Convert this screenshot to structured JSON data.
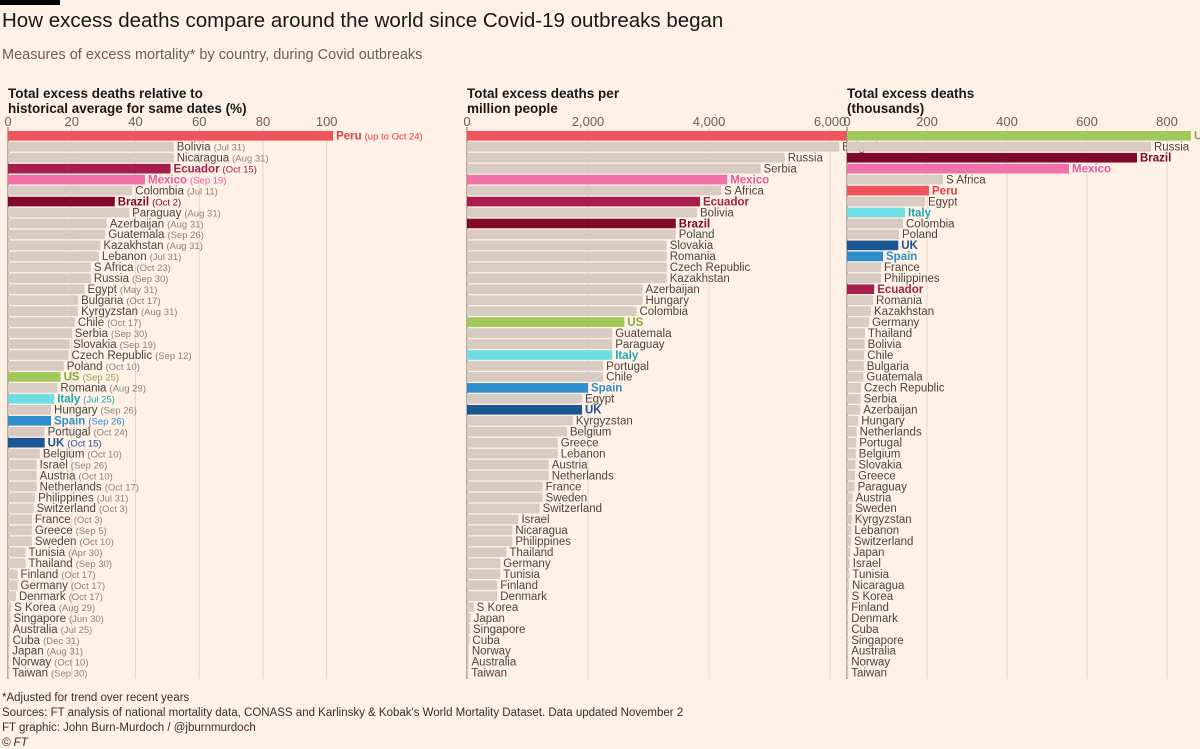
{
  "title": "How excess deaths compare around the world since Covid-19 outbreaks began",
  "subtitle": "Measures of excess mortality* by country, during Covid outbreaks",
  "footnotes": {
    "note": "*Adjusted for trend over recent years",
    "sources": "Sources: FT analysis of national mortality data, CONASS and Karlinsky & Kobak's World Mortality Dataset. Data updated November 2",
    "credit": "FT graphic: John Burn-Murdoch / @jburnmurdoch",
    "copyright": "© FT"
  },
  "colors": {
    "background": "#fff1e5",
    "default_bar": "#d8cbc4",
    "grid": "#e3d6cd",
    "Peru": "#f0535a",
    "Ecuador": "#a61e4d",
    "Mexico": "#f271a9",
    "Brazil": "#80082a",
    "US": "#a1c95a",
    "Italy": "#6edee3",
    "Spain": "#2e8dcb",
    "UK": "#1a5594"
  },
  "label_colors": {
    "Peru": "#e03b44",
    "Ecuador": "#a61e4d",
    "Mexico": "#e95aa0",
    "Brazil": "#80082a",
    "US": "#8ca83e",
    "Italy": "#1da8b5",
    "Spain": "#2e8dcb",
    "UK": "#1a5594"
  },
  "chart_data": [
    {
      "type": "bar",
      "title_lines": [
        "Total excess deaths relative to",
        "historical average for same dates (%)"
      ],
      "xlim": [
        0,
        115
      ],
      "ticks": [
        0,
        20,
        40,
        60,
        80,
        100
      ],
      "tick_labels": [
        "0",
        "20",
        "40",
        "60",
        "80",
        "100"
      ],
      "bars": [
        {
          "country": "Peru",
          "value": 102,
          "date": "(up to Oct 24)"
        },
        {
          "country": "Bolivia",
          "value": 52,
          "date": "(Jul 31)"
        },
        {
          "country": "Nicaragua",
          "value": 52,
          "date": "(Aug 31)"
        },
        {
          "country": "Ecuador",
          "value": 51,
          "date": "(Oct 15)"
        },
        {
          "country": "Mexico",
          "value": 43,
          "date": "(Sep 19)"
        },
        {
          "country": "Colombia",
          "value": 39,
          "date": "(Jul 11)"
        },
        {
          "country": "Brazil",
          "value": 33.5,
          "date": "(Oct 2)"
        },
        {
          "country": "Paraguay",
          "value": 38,
          "date": "(Aug 31)"
        },
        {
          "country": "Azerbaijan",
          "value": 31,
          "date": "(Aug 31)"
        },
        {
          "country": "Guatemala",
          "value": 30.5,
          "date": "(Sep 26)"
        },
        {
          "country": "Kazakhstan",
          "value": 29,
          "date": "(Aug 31)"
        },
        {
          "country": "Lebanon",
          "value": 28.5,
          "date": "(Jul 31)"
        },
        {
          "country": "S Africa",
          "value": 26,
          "date": "(Oct 23)"
        },
        {
          "country": "Russia",
          "value": 26,
          "date": "(Sep 30)"
        },
        {
          "country": "Egypt",
          "value": 24,
          "date": "(May 31)"
        },
        {
          "country": "Bulgaria",
          "value": 22,
          "date": "(Oct 17)"
        },
        {
          "country": "Kyrgyzstan",
          "value": 22,
          "date": "(Aug 31)"
        },
        {
          "country": "Chile",
          "value": 21,
          "date": "(Oct 17)"
        },
        {
          "country": "Serbia",
          "value": 20,
          "date": "(Sep 30)"
        },
        {
          "country": "Slovakia",
          "value": 19.5,
          "date": "(Sep 19)"
        },
        {
          "country": "Czech Republic",
          "value": 19,
          "date": "(Sep 12)"
        },
        {
          "country": "Poland",
          "value": 17.5,
          "date": "(Oct 10)"
        },
        {
          "country": "US",
          "value": 16.5,
          "date": "(Sep 25)"
        },
        {
          "country": "Romania",
          "value": 15.5,
          "date": "(Aug 29)"
        },
        {
          "country": "Italy",
          "value": 14.5,
          "date": "(Jul 25)"
        },
        {
          "country": "Hungary",
          "value": 13.5,
          "date": "(Sep 26)"
        },
        {
          "country": "Spain",
          "value": 13.5,
          "date": "(Sep 26)"
        },
        {
          "country": "Portugal",
          "value": 11.5,
          "date": "(Oct 24)"
        },
        {
          "country": "UK",
          "value": 11.5,
          "date": "(Oct 15)"
        },
        {
          "country": "Belgium",
          "value": 10,
          "date": "(Oct 10)"
        },
        {
          "country": "Israel",
          "value": 9,
          "date": "(Sep 26)"
        },
        {
          "country": "Austria",
          "value": 9,
          "date": "(Oct 10)"
        },
        {
          "country": "Netherlands",
          "value": 9,
          "date": "(Oct 17)"
        },
        {
          "country": "Philippines",
          "value": 8.5,
          "date": "(Jul 31)"
        },
        {
          "country": "Switzerland",
          "value": 8,
          "date": "(Oct 3)"
        },
        {
          "country": "France",
          "value": 7.5,
          "date": "(Oct 3)"
        },
        {
          "country": "Greece",
          "value": 7.5,
          "date": "(Sep 5)"
        },
        {
          "country": "Sweden",
          "value": 7.5,
          "date": "(Oct 10)"
        },
        {
          "country": "Tunisia",
          "value": 5.5,
          "date": "(Apr 30)"
        },
        {
          "country": "Thailand",
          "value": 5.5,
          "date": "(Sep 30)"
        },
        {
          "country": "Finland",
          "value": 3,
          "date": "(Oct 17)"
        },
        {
          "country": "Germany",
          "value": 3,
          "date": "(Oct 17)"
        },
        {
          "country": "Denmark",
          "value": 2.5,
          "date": "(Oct 17)"
        },
        {
          "country": "S Korea",
          "value": 1,
          "date": "(Aug 29)"
        },
        {
          "country": "Singapore",
          "value": 0.8,
          "date": "(Jun 30)"
        },
        {
          "country": "Australia",
          "value": 0.6,
          "date": "(Jul 25)"
        },
        {
          "country": "Cuba",
          "value": 0.5,
          "date": "(Dec 31)"
        },
        {
          "country": "Japan",
          "value": 0.4,
          "date": "(Aug 31)"
        },
        {
          "country": "Norway",
          "value": 0.3,
          "date": "(Oct 10)"
        },
        {
          "country": "Taiwan",
          "value": 0.3,
          "date": "(Sep 30)"
        }
      ]
    },
    {
      "type": "bar",
      "title_lines": [
        "Total excess deaths per",
        "million people"
      ],
      "xlim": [
        0,
        6800
      ],
      "ticks": [
        0,
        2000,
        4000,
        6000
      ],
      "tick_labels": [
        "0",
        "2,000",
        "4,000",
        "6,000"
      ],
      "bars": [
        {
          "country": "Peru",
          "value": 6300
        },
        {
          "country": "Bulgaria",
          "value": 6150
        },
        {
          "country": "Russia",
          "value": 5250
        },
        {
          "country": "Serbia",
          "value": 4850
        },
        {
          "country": "Mexico",
          "value": 4300
        },
        {
          "country": "S Africa",
          "value": 4200
        },
        {
          "country": "Ecuador",
          "value": 3850
        },
        {
          "country": "Bolivia",
          "value": 3800
        },
        {
          "country": "Brazil",
          "value": 3450
        },
        {
          "country": "Poland",
          "value": 3450
        },
        {
          "country": "Slovakia",
          "value": 3300
        },
        {
          "country": "Romania",
          "value": 3300
        },
        {
          "country": "Czech Republic",
          "value": 3300
        },
        {
          "country": "Kazakhstan",
          "value": 3300
        },
        {
          "country": "Azerbaijan",
          "value": 2900
        },
        {
          "country": "Hungary",
          "value": 2900
        },
        {
          "country": "Colombia",
          "value": 2800
        },
        {
          "country": "US",
          "value": 2600
        },
        {
          "country": "Guatemala",
          "value": 2400
        },
        {
          "country": "Paraguay",
          "value": 2400
        },
        {
          "country": "Italy",
          "value": 2400
        },
        {
          "country": "Portugal",
          "value": 2250
        },
        {
          "country": "Chile",
          "value": 2250
        },
        {
          "country": "Spain",
          "value": 2000
        },
        {
          "country": "Egypt",
          "value": 1900
        },
        {
          "country": "UK",
          "value": 1900
        },
        {
          "country": "Kyrgyzstan",
          "value": 1750
        },
        {
          "country": "Belgium",
          "value": 1650
        },
        {
          "country": "Greece",
          "value": 1500
        },
        {
          "country": "Lebanon",
          "value": 1500
        },
        {
          "country": "Austria",
          "value": 1350
        },
        {
          "country": "Netherlands",
          "value": 1350
        },
        {
          "country": "France",
          "value": 1250
        },
        {
          "country": "Sweden",
          "value": 1250
        },
        {
          "country": "Switzerland",
          "value": 1200
        },
        {
          "country": "Israel",
          "value": 850
        },
        {
          "country": "Nicaragua",
          "value": 750
        },
        {
          "country": "Philippines",
          "value": 750
        },
        {
          "country": "Thailand",
          "value": 650
        },
        {
          "country": "Germany",
          "value": 550
        },
        {
          "country": "Tunisia",
          "value": 550
        },
        {
          "country": "Finland",
          "value": 500
        },
        {
          "country": "Denmark",
          "value": 500
        },
        {
          "country": "S Korea",
          "value": 110
        },
        {
          "country": "Japan",
          "value": 60
        },
        {
          "country": "Singapore",
          "value": 50
        },
        {
          "country": "Cuba",
          "value": 40
        },
        {
          "country": "Norway",
          "value": 30
        },
        {
          "country": "Australia",
          "value": 25
        },
        {
          "country": "Taiwan",
          "value": 20
        }
      ]
    },
    {
      "type": "bar",
      "title_lines": [
        "Total excess deaths",
        "(thousands)"
      ],
      "xlim": [
        0,
        880
      ],
      "ticks": [
        0,
        200,
        400,
        600,
        800
      ],
      "tick_labels": [
        "0",
        "200",
        "400",
        "600",
        "800"
      ],
      "bars": [
        {
          "country": "US",
          "value": 860
        },
        {
          "country": "Russia",
          "value": 760
        },
        {
          "country": "Brazil",
          "value": 725
        },
        {
          "country": "Mexico",
          "value": 555
        },
        {
          "country": "S Africa",
          "value": 240
        },
        {
          "country": "Peru",
          "value": 205
        },
        {
          "country": "Egypt",
          "value": 195
        },
        {
          "country": "Italy",
          "value": 145
        },
        {
          "country": "Colombia",
          "value": 140
        },
        {
          "country": "Poland",
          "value": 130
        },
        {
          "country": "UK",
          "value": 128
        },
        {
          "country": "Spain",
          "value": 90
        },
        {
          "country": "France",
          "value": 85
        },
        {
          "country": "Philippines",
          "value": 85
        },
        {
          "country": "Ecuador",
          "value": 68
        },
        {
          "country": "Romania",
          "value": 65
        },
        {
          "country": "Kazakhstan",
          "value": 60
        },
        {
          "country": "Germany",
          "value": 55
        },
        {
          "country": "Thailand",
          "value": 45
        },
        {
          "country": "Bolivia",
          "value": 44
        },
        {
          "country": "Chile",
          "value": 43
        },
        {
          "country": "Bulgaria",
          "value": 42
        },
        {
          "country": "Guatemala",
          "value": 41
        },
        {
          "country": "Czech Republic",
          "value": 35
        },
        {
          "country": "Serbia",
          "value": 34
        },
        {
          "country": "Azerbaijan",
          "value": 33
        },
        {
          "country": "Hungary",
          "value": 28
        },
        {
          "country": "Netherlands",
          "value": 24
        },
        {
          "country": "Portugal",
          "value": 23
        },
        {
          "country": "Belgium",
          "value": 22
        },
        {
          "country": "Slovakia",
          "value": 21
        },
        {
          "country": "Greece",
          "value": 20
        },
        {
          "country": "Paraguay",
          "value": 19
        },
        {
          "country": "Austria",
          "value": 14
        },
        {
          "country": "Sweden",
          "value": 13
        },
        {
          "country": "Kyrgyzstan",
          "value": 12
        },
        {
          "country": "Lebanon",
          "value": 11
        },
        {
          "country": "Switzerland",
          "value": 10
        },
        {
          "country": "Japan",
          "value": 8
        },
        {
          "country": "Israel",
          "value": 7
        },
        {
          "country": "Tunisia",
          "value": 6
        },
        {
          "country": "Nicaragua",
          "value": 5
        },
        {
          "country": "S Korea",
          "value": 4
        },
        {
          "country": "Finland",
          "value": 3
        },
        {
          "country": "Denmark",
          "value": 3
        },
        {
          "country": "Cuba",
          "value": 2
        },
        {
          "country": "Singapore",
          "value": 1.5
        },
        {
          "country": "Australia",
          "value": 1
        },
        {
          "country": "Norway",
          "value": 0.5
        },
        {
          "country": "Taiwan",
          "value": 0.5
        }
      ]
    }
  ]
}
